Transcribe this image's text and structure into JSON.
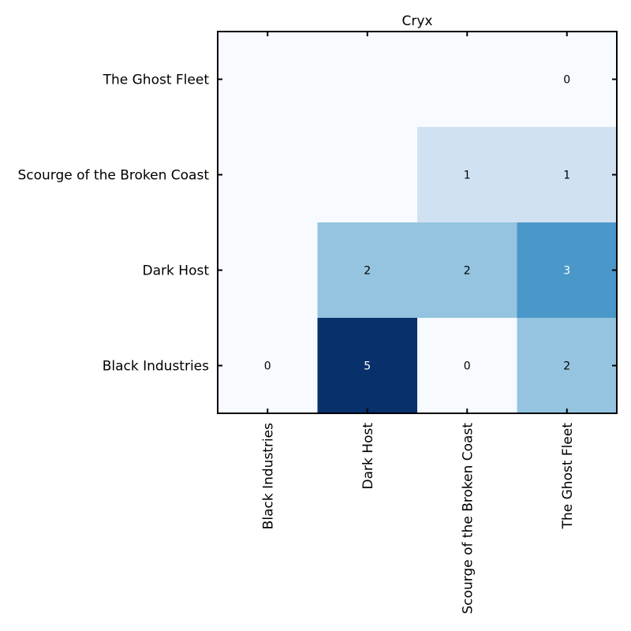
{
  "chart_data": {
    "type": "heatmap",
    "title": "Cryx",
    "xlabel": "",
    "ylabel": "",
    "x_categories": [
      "Black Industries",
      "Dark Host",
      "Scourge of the Broken Coast",
      "The Ghost Fleet"
    ],
    "y_categories": [
      "The Ghost Fleet",
      "Scourge of the Broken Coast",
      "Dark Host",
      "Black Industries"
    ],
    "colormap": "Blues",
    "color_range": [
      0,
      5
    ],
    "cells": [
      {
        "y": "The Ghost Fleet",
        "x": "The Ghost Fleet",
        "value": 0,
        "label": "0"
      },
      {
        "y": "Scourge of the Broken Coast",
        "x": "Scourge of the Broken Coast",
        "value": 1,
        "label": "1"
      },
      {
        "y": "Scourge of the Broken Coast",
        "x": "The Ghost Fleet",
        "value": 1,
        "label": "1"
      },
      {
        "y": "Dark Host",
        "x": "Dark Host",
        "value": 2,
        "label": "2"
      },
      {
        "y": "Dark Host",
        "x": "Scourge of the Broken Coast",
        "value": 2,
        "label": "2"
      },
      {
        "y": "Dark Host",
        "x": "The Ghost Fleet",
        "value": 3,
        "label": "3"
      },
      {
        "y": "Black Industries",
        "x": "Black Industries",
        "value": 0,
        "label": "0"
      },
      {
        "y": "Black Industries",
        "x": "Dark Host",
        "value": 5,
        "label": "5"
      },
      {
        "y": "Black Industries",
        "x": "Scourge of the Broken Coast",
        "value": 0,
        "label": "0"
      },
      {
        "y": "Black Industries",
        "x": "The Ghost Fleet",
        "value": 2,
        "label": "2"
      }
    ],
    "grid": false,
    "legend": "none"
  }
}
